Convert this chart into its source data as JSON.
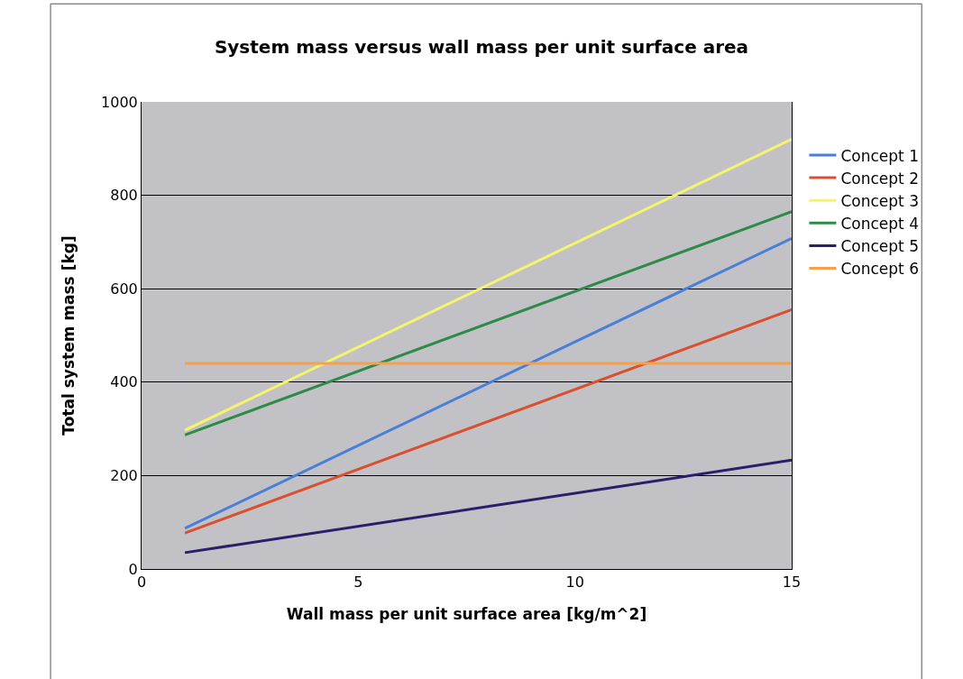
{
  "chart_data": {
    "type": "line",
    "title": "System mass versus wall mass per unit surface area",
    "xlabel": "Wall mass per unit surface area [kg/m^2]",
    "ylabel": "Total system mass [kg]",
    "x": [
      1,
      15
    ],
    "series": [
      {
        "name": "Concept 1",
        "color": "#4a7fd8",
        "values": [
          87,
          708
        ]
      },
      {
        "name": "Concept 2",
        "color": "#d9502e",
        "values": [
          77,
          555
        ]
      },
      {
        "name": "Concept 3",
        "color": "#f5f56a",
        "values": [
          297,
          920
        ]
      },
      {
        "name": "Concept 4",
        "color": "#2e8b47",
        "values": [
          287,
          765
        ]
      },
      {
        "name": "Concept 5",
        "color": "#2a1f6b",
        "values": [
          35,
          233
        ]
      },
      {
        "name": "Concept 6",
        "color": "#f5a04a",
        "values": [
          440,
          440
        ]
      }
    ],
    "xlim": [
      0,
      15
    ],
    "ylim": [
      0,
      1000
    ],
    "xticks": [
      0,
      5,
      10,
      15
    ],
    "yticks": [
      0,
      200,
      400,
      600,
      800,
      1000
    ],
    "grid": "y",
    "legend": "right",
    "marker": "none",
    "line_style": "solid"
  }
}
